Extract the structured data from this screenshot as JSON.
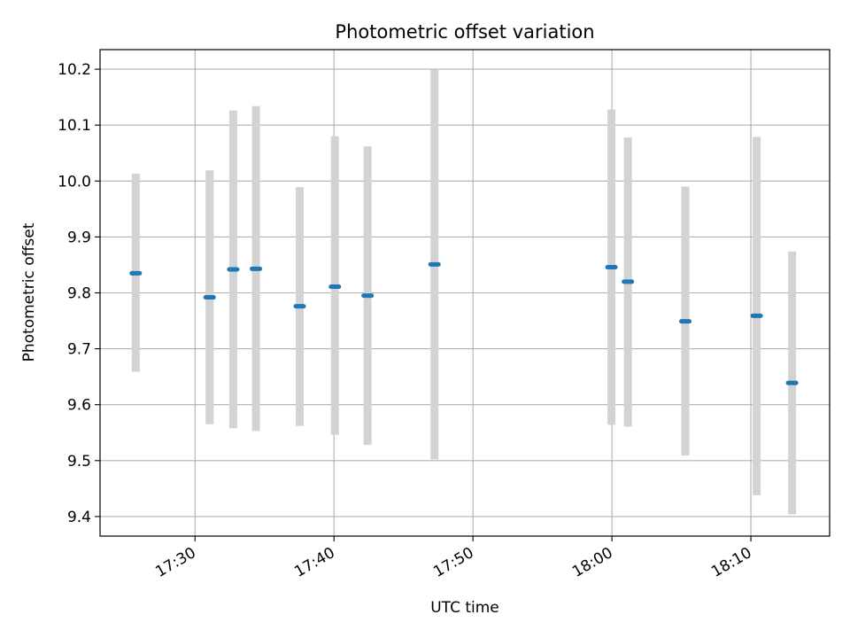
{
  "chart_data": {
    "type": "scatter",
    "title": "Photometric offset variation",
    "xlabel": "UTC time",
    "ylabel": "Photometric offset",
    "xlim": [
      "17:23:10",
      "18:15:40"
    ],
    "ylim": [
      9.365,
      10.235
    ],
    "x_ticks": [
      "17:30",
      "17:40",
      "17:50",
      "18:00",
      "18:10"
    ],
    "y_ticks": [
      "9.4",
      "9.5",
      "9.6",
      "9.7",
      "9.8",
      "9.9",
      "10.0",
      "10.1",
      "10.2"
    ],
    "grid": true,
    "marker_color": "#1f77b4",
    "errorbar_color": "#d3d3d3",
    "grid_color": "#b0b0b0",
    "points": [
      {
        "time": "17:25:44",
        "offset": 9.835,
        "low": 9.659,
        "high": 10.013
      },
      {
        "time": "17:31:03",
        "offset": 9.792,
        "low": 9.565,
        "high": 10.019
      },
      {
        "time": "17:32:45",
        "offset": 9.842,
        "low": 9.558,
        "high": 10.126
      },
      {
        "time": "17:34:23",
        "offset": 9.843,
        "low": 9.553,
        "high": 10.134
      },
      {
        "time": "17:37:32",
        "offset": 9.776,
        "low": 9.562,
        "high": 9.989
      },
      {
        "time": "17:40:04",
        "offset": 9.811,
        "low": 9.546,
        "high": 10.08
      },
      {
        "time": "17:42:25",
        "offset": 9.795,
        "low": 9.528,
        "high": 10.062
      },
      {
        "time": "17:47:14",
        "offset": 9.851,
        "low": 9.502,
        "high": 10.199
      },
      {
        "time": "17:59:58",
        "offset": 9.846,
        "low": 9.564,
        "high": 10.128
      },
      {
        "time": "18:01:09",
        "offset": 9.82,
        "low": 9.561,
        "high": 10.078
      },
      {
        "time": "18:05:17",
        "offset": 9.749,
        "low": 9.509,
        "high": 9.99
      },
      {
        "time": "18:10:25",
        "offset": 9.759,
        "low": 9.438,
        "high": 10.079
      },
      {
        "time": "18:12:58",
        "offset": 9.639,
        "low": 9.404,
        "high": 9.874
      }
    ]
  }
}
